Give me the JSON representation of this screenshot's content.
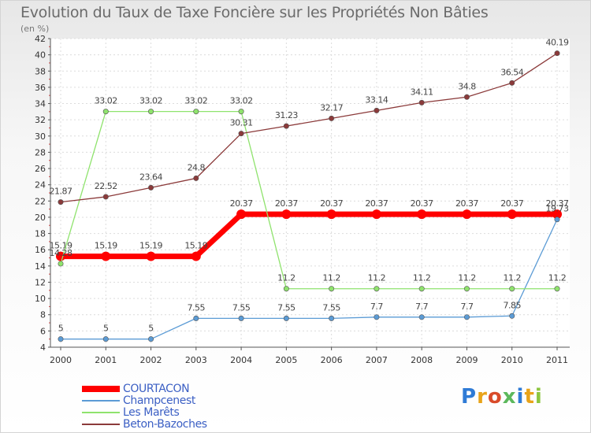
{
  "title": "Evolution du Taux de Taxe Foncière sur les Propriétés Non Bâties",
  "unit": "(en %)",
  "logo": {
    "text": "Proxiti",
    "colors": [
      "#2f7bd6",
      "#e8a319",
      "#d94b2a",
      "#5cb85c",
      "#2f7bd6",
      "#e8a319",
      "#8dc63f"
    ]
  },
  "chart_data": {
    "type": "line",
    "title": "Evolution du Taux de Taxe Foncière sur les Propriétés Non Bâties",
    "ylabel": "(en %)",
    "xlabel": "",
    "categories": [
      "2000",
      "2001",
      "2002",
      "2003",
      "2004",
      "2005",
      "2006",
      "2007",
      "2008",
      "2009",
      "2010",
      "2011"
    ],
    "yticks": [
      "4",
      "6",
      "8",
      "10",
      "12",
      "14",
      "16",
      "18",
      "20",
      "22",
      "24",
      "26",
      "28",
      "30",
      "32",
      "34",
      "36",
      "38",
      "40",
      "42"
    ],
    "ylim": [
      4,
      42
    ],
    "grid": true,
    "legend_position": "bottom-left",
    "series": [
      {
        "name": "COURTACON",
        "color": "#ff0000",
        "width": 7,
        "values": [
          15.19,
          15.19,
          15.19,
          15.19,
          20.37,
          20.37,
          20.37,
          20.37,
          20.37,
          20.37,
          20.37,
          20.37
        ],
        "labels": [
          "15.19",
          "15.19",
          "15.19",
          "15.19",
          "20.37",
          "20.37",
          "20.37",
          "20.37",
          "20.37",
          "20.37",
          "20.37",
          "20.37"
        ]
      },
      {
        "name": "Champcenest",
        "color": "#5b9bd5",
        "width": 1.3,
        "values": [
          5,
          5,
          5,
          7.55,
          7.55,
          7.55,
          7.55,
          7.7,
          7.7,
          7.7,
          7.85,
          19.73
        ],
        "labels": [
          "5",
          "5",
          "5",
          "7.55",
          "7.55",
          "7.55",
          "7.55",
          "7.7",
          "7.7",
          "7.7",
          "7.85",
          "19.73"
        ]
      },
      {
        "name": "Les Marêts",
        "color": "#8fe36d",
        "width": 1.3,
        "values": [
          14.28,
          33.02,
          33.02,
          33.02,
          33.02,
          11.2,
          11.2,
          11.2,
          11.2,
          11.2,
          11.2,
          11.2
        ],
        "labels": [
          "14.28",
          "33.02",
          "33.02",
          "33.02",
          "33.02",
          "11.2",
          "11.2",
          "11.2",
          "11.2",
          "11.2",
          "11.2",
          "11.2"
        ]
      },
      {
        "name": "Beton-Bazoches",
        "color": "#8b3a3a",
        "width": 1.3,
        "values": [
          21.87,
          22.52,
          23.64,
          24.8,
          30.31,
          31.23,
          32.17,
          33.14,
          34.11,
          34.8,
          36.54,
          40.19
        ],
        "labels": [
          "21.87",
          "22.52",
          "23.64",
          "24.8",
          "30.31",
          "31.23",
          "32.17",
          "33.14",
          "34.11",
          "34.8",
          "36.54",
          "40.19"
        ]
      }
    ]
  }
}
